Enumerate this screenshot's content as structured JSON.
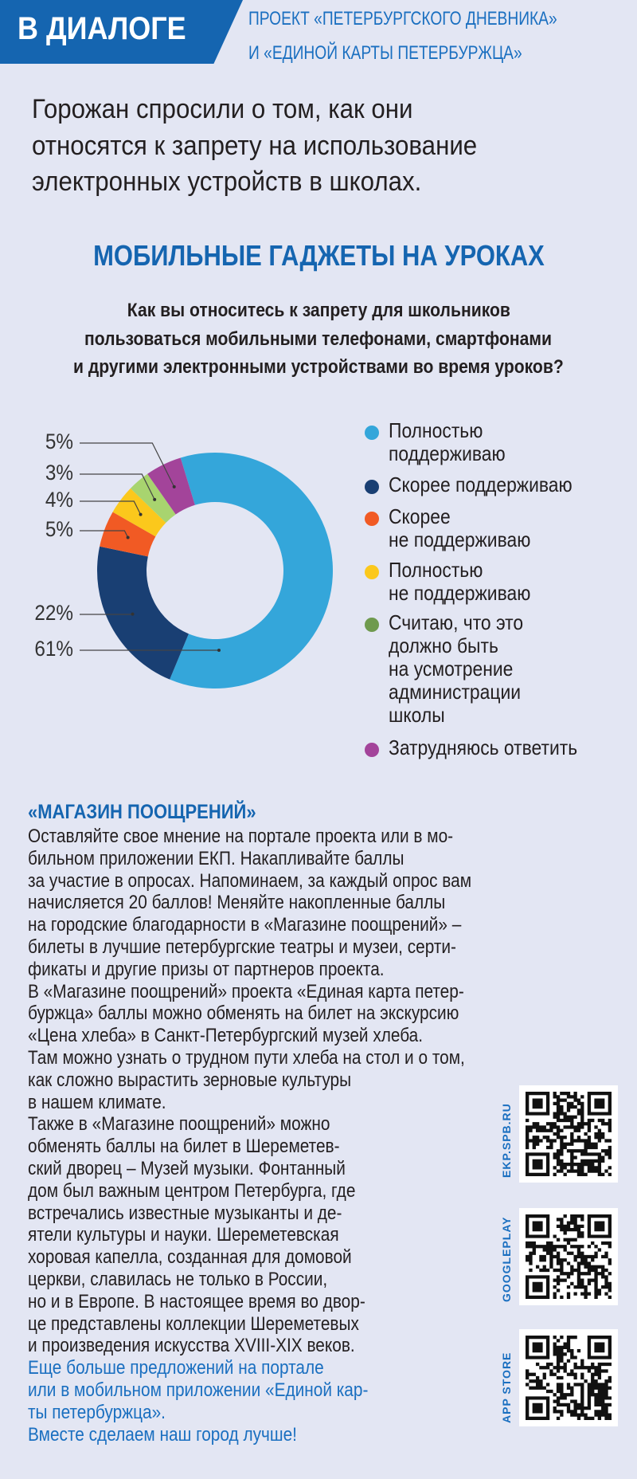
{
  "header": {
    "badge": "В ДИАЛОГЕ",
    "project_line1": "ПРОЕКТ «ПЕТЕРБУРГСКОГО ДНЕВНИКА»",
    "project_line2": "И «ЕДИНОЙ КАРТЫ ПЕТЕРБУРЖЦА»",
    "accent": "#1565b0"
  },
  "intro": [
    "Горожан спросили о том, как они",
    "относятся к запрету на использование",
    "электронных устройств в школах."
  ],
  "chart_data": {
    "type": "pie",
    "title": "МОБИЛЬНЫЕ ГАДЖЕТЫ НА УРОКАХ",
    "question": [
      "Как вы относитесь к запрету для школьников",
      "пользоваться мобильными телефонами, смартфонами",
      "и другими электронными устройствами во время уроков?"
    ],
    "categories": [
      "Полностью поддерживаю",
      "Скорее поддерживаю",
      "Скорее не поддерживаю",
      "Полностью не поддерживаю",
      "Считаю, что это должно быть на усмотрение администрации школы",
      "Затрудняюсь ответить"
    ],
    "values": [
      61,
      22,
      5,
      4,
      3,
      5
    ],
    "value_labels": [
      "61%",
      "22%",
      "5%",
      "4%",
      "3%",
      "5%"
    ],
    "colors": [
      "#34a6da",
      "#193f73",
      "#f15a24",
      "#fbc81c",
      "#a8d46f",
      "#a3449a"
    ],
    "legend_dot_colors": [
      "#34a6da",
      "#193f73",
      "#f15a24",
      "#fbc81c",
      "#6f9a4e",
      "#a3449a"
    ],
    "legend_lines": [
      [
        "Полностью",
        "поддерживаю"
      ],
      [
        "Скорее поддерживаю"
      ],
      [
        "Скорее",
        "не поддерживаю"
      ],
      [
        "Полностью",
        "не поддерживаю"
      ],
      [
        "Считаю, что это",
        "должно быть",
        "на усмотрение",
        "администрации",
        "школы"
      ],
      [
        "Затрудняюсь ответить"
      ]
    ],
    "legend": "right",
    "donut": true
  },
  "article": {
    "heading": "«МАГАЗИН ПООЩРЕНИЙ»",
    "lines": [
      "Оставляйте свое мнение на портале проекта или в мо-",
      "бильном приложении ЕКП. Накапливайте баллы",
      "за участие в опросах. Напоминаем, за каждый опрос вам",
      "начисляется 20 баллов! Меняйте накопленные баллы",
      "на городские благодарности в «Магазине поощрений» –",
      "билеты в лучшие петербургские театры и музеи, серти-",
      "фикаты и другие призы от партнеров проекта.",
      "В «Магазине поощрений» проекта «Единая карта петер-",
      "буржца» баллы можно обменять на билет на экскурсию",
      "«Цена хлеба» в Санкт-Петербургский музей хлеба.",
      "Там можно узнать о трудном пути хлеба на стол и о том,",
      "как сложно вырастить зерновые культуры",
      "в нашем климате.",
      "Также в «Магазине поощрений» можно",
      "обменять баллы на билет в Шереметев-",
      "ский дворец – Музей музыки. Фонтанный",
      "дом был важным центром Петербурга, где",
      "встречались известные музыканты и де-",
      "ятели культуры и науки. Шереметевская",
      "хоровая капелла, созданная для домовой",
      "церкви, славилась не только в России,",
      "но и в Европе. В настоящее время во двор-",
      "це представлены коллекции Шереметевых",
      "и произведения искусства XVIII-XIX веков."
    ],
    "blue_lines": [
      "Еще больше предложений на портале",
      "или в мобильном приложении «Единой кар-",
      "ты петербуржца».",
      "Вместе сделаем наш город лучше!"
    ]
  },
  "qr_codes": [
    {
      "label": "EKP.SPB.RU"
    },
    {
      "label": "GOOGLEPLAY"
    },
    {
      "label": "APP STORE"
    }
  ]
}
